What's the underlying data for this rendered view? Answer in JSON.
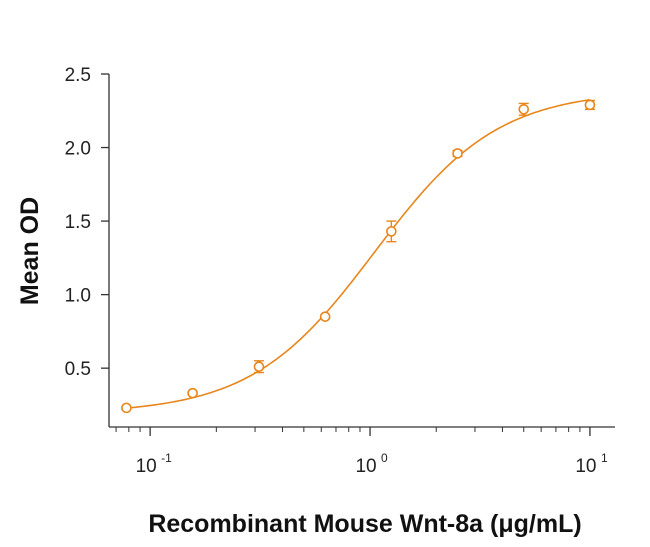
{
  "chart_data": {
    "type": "scatter",
    "title": "",
    "xlabel": "Recombinant Mouse Wnt-8a (μg/mL)",
    "ylabel": "Mean OD",
    "x_scale": "log",
    "xlim": [
      0.065,
      13
    ],
    "ylim": [
      0.1,
      2.5
    ],
    "x_ticks": [
      {
        "value": 0.1,
        "base": "10",
        "exp": "-1"
      },
      {
        "value": 1,
        "base": "10",
        "exp": "0"
      },
      {
        "value": 10,
        "base": "10",
        "exp": "1"
      }
    ],
    "y_ticks": [
      {
        "value": 0.5,
        "label": "0.5"
      },
      {
        "value": 1.0,
        "label": "1.0"
      },
      {
        "value": 1.5,
        "label": "1.5"
      },
      {
        "value": 2.0,
        "label": "2.0"
      },
      {
        "value": 2.5,
        "label": "2.5"
      }
    ],
    "grid": false,
    "legend": "none",
    "color": "#E8861C",
    "series": [
      {
        "x": [
          0.078,
          0.156,
          0.3125,
          0.625,
          1.25,
          2.5,
          5,
          10
        ],
        "y": [
          0.23,
          0.33,
          0.51,
          0.85,
          1.43,
          1.96,
          2.26,
          2.29
        ],
        "error": [
          0.01,
          0.01,
          0.04,
          0.01,
          0.07,
          0.02,
          0.04,
          0.03
        ]
      }
    ],
    "fit_curve": "4-parameter logistic"
  }
}
